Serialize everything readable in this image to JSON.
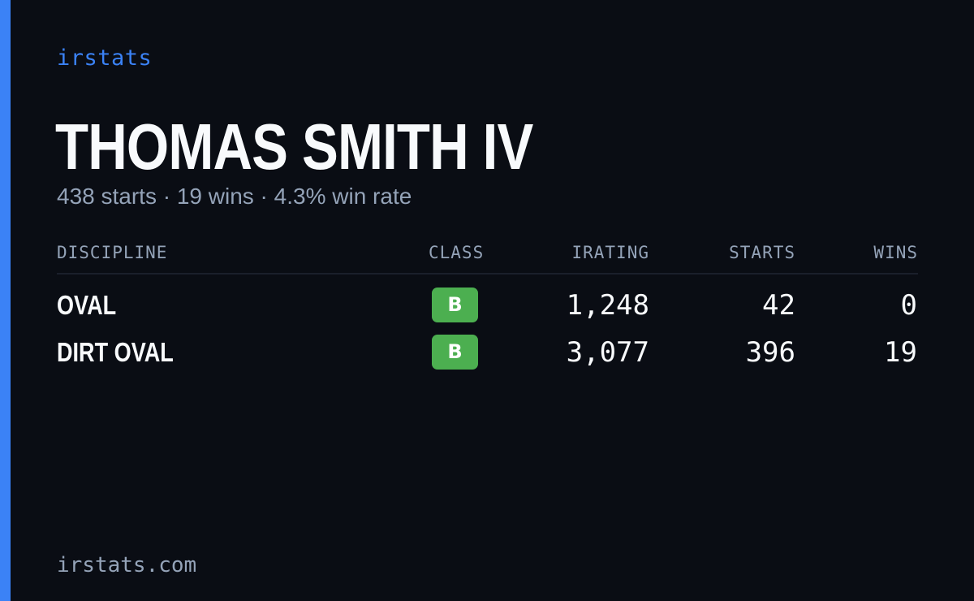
{
  "brand": "irstats",
  "driver": {
    "name": "THOMAS SMITH IV",
    "summary": "438 starts · 19 wins · 4.3% win rate"
  },
  "table": {
    "headers": {
      "discipline": "DISCIPLINE",
      "class": "CLASS",
      "irating": "IRATING",
      "starts": "STARTS",
      "wins": "WINS"
    },
    "rows": [
      {
        "discipline": "OVAL",
        "class": "B",
        "irating": "1,248",
        "starts": "42",
        "wins": "0"
      },
      {
        "discipline": "DIRT OVAL",
        "class": "B",
        "irating": "3,077",
        "starts": "396",
        "wins": "19"
      }
    ]
  },
  "footer": "irstats.com",
  "colors": {
    "background": "#0a0d14",
    "accent": "#3b82f6",
    "class_b_badge": "#4caf50",
    "text_primary": "#f8fafc",
    "text_muted": "#94a3b8"
  }
}
